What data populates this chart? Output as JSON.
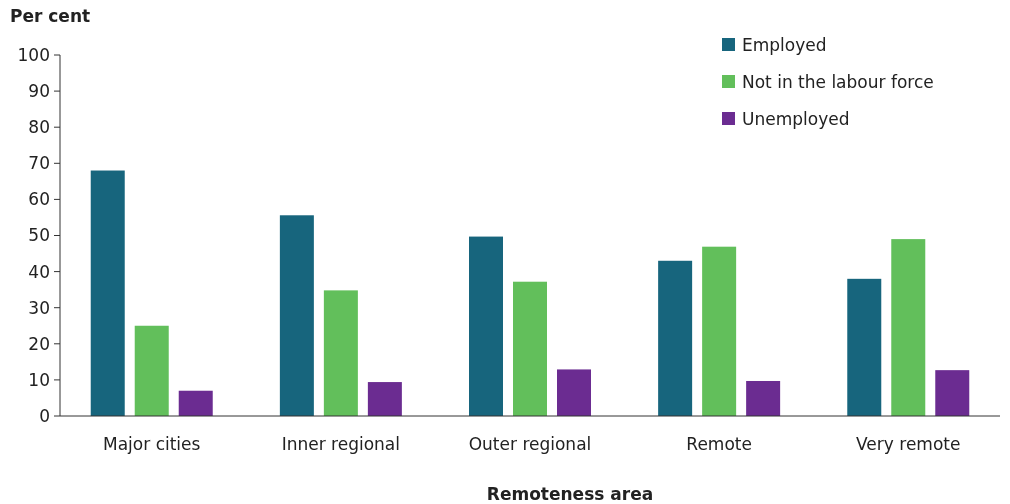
{
  "chart_data": {
    "type": "bar",
    "xlabel": "Remoteness area",
    "ylabel": "Per cent",
    "categories": [
      "Major cities",
      "Inner regional",
      "Outer regional",
      "Remote",
      "Very remote"
    ],
    "series": [
      {
        "name": "Employed",
        "color": "#17657d",
        "values": [
          68,
          55.6,
          49.7,
          43,
          38
        ]
      },
      {
        "name": "Not in the labour force",
        "color": "#62bf5b",
        "values": [
          25,
          34.8,
          37.2,
          46.9,
          49
        ]
      },
      {
        "name": "Unemployed",
        "color": "#6b2c91",
        "values": [
          7,
          9.4,
          12.9,
          9.7,
          12.7
        ]
      }
    ],
    "ylim": [
      0,
      100
    ],
    "yticks": [
      0,
      10,
      20,
      30,
      40,
      50,
      60,
      70,
      80,
      90,
      100
    ],
    "grid": false,
    "legend": "top right"
  }
}
